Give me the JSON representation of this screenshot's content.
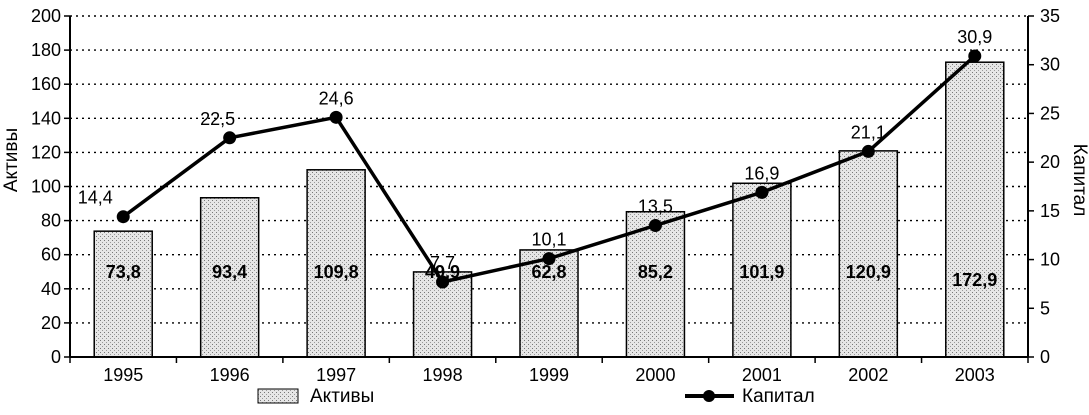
{
  "chart_data": {
    "type": "bar",
    "categories": [
      "1995",
      "1996",
      "1997",
      "1998",
      "1999",
      "2000",
      "2001",
      "2002",
      "2003"
    ],
    "series": [
      {
        "name": "Активы",
        "type": "bar",
        "axis": "left",
        "values": [
          73.8,
          93.4,
          109.8,
          49.9,
          62.8,
          85.2,
          101.9,
          120.9,
          172.9
        ],
        "labels": [
          "73,8",
          "93,4",
          "109,8",
          "49,9",
          "62,8",
          "85,2",
          "101,9",
          "120,9",
          "172,9"
        ]
      },
      {
        "name": "Капитал",
        "type": "line",
        "axis": "right",
        "values": [
          14.4,
          22.5,
          24.6,
          7.7,
          10.1,
          13.5,
          16.9,
          21.1,
          30.9
        ],
        "labels": [
          "14,4",
          "22,5",
          "24,6",
          "7,7",
          "10,1",
          "13,5",
          "16,9",
          "21,1",
          "30,9"
        ]
      }
    ],
    "ylabel": "Активы",
    "ylabel_right": "Капитал",
    "ylim": [
      0,
      200
    ],
    "ylim_right": [
      0,
      35
    ],
    "yticks": [
      "0",
      "20",
      "40",
      "60",
      "80",
      "100",
      "120",
      "140",
      "160",
      "180",
      "200"
    ],
    "yticks_right": [
      "0",
      "5",
      "10",
      "15",
      "20",
      "25",
      "30",
      "35"
    ],
    "grid": "dotted horizontal",
    "legend_position": "bottom",
    "colors": {
      "bar_fill": "#d4d4d4",
      "line": "#000000",
      "axis": "#000000"
    }
  }
}
